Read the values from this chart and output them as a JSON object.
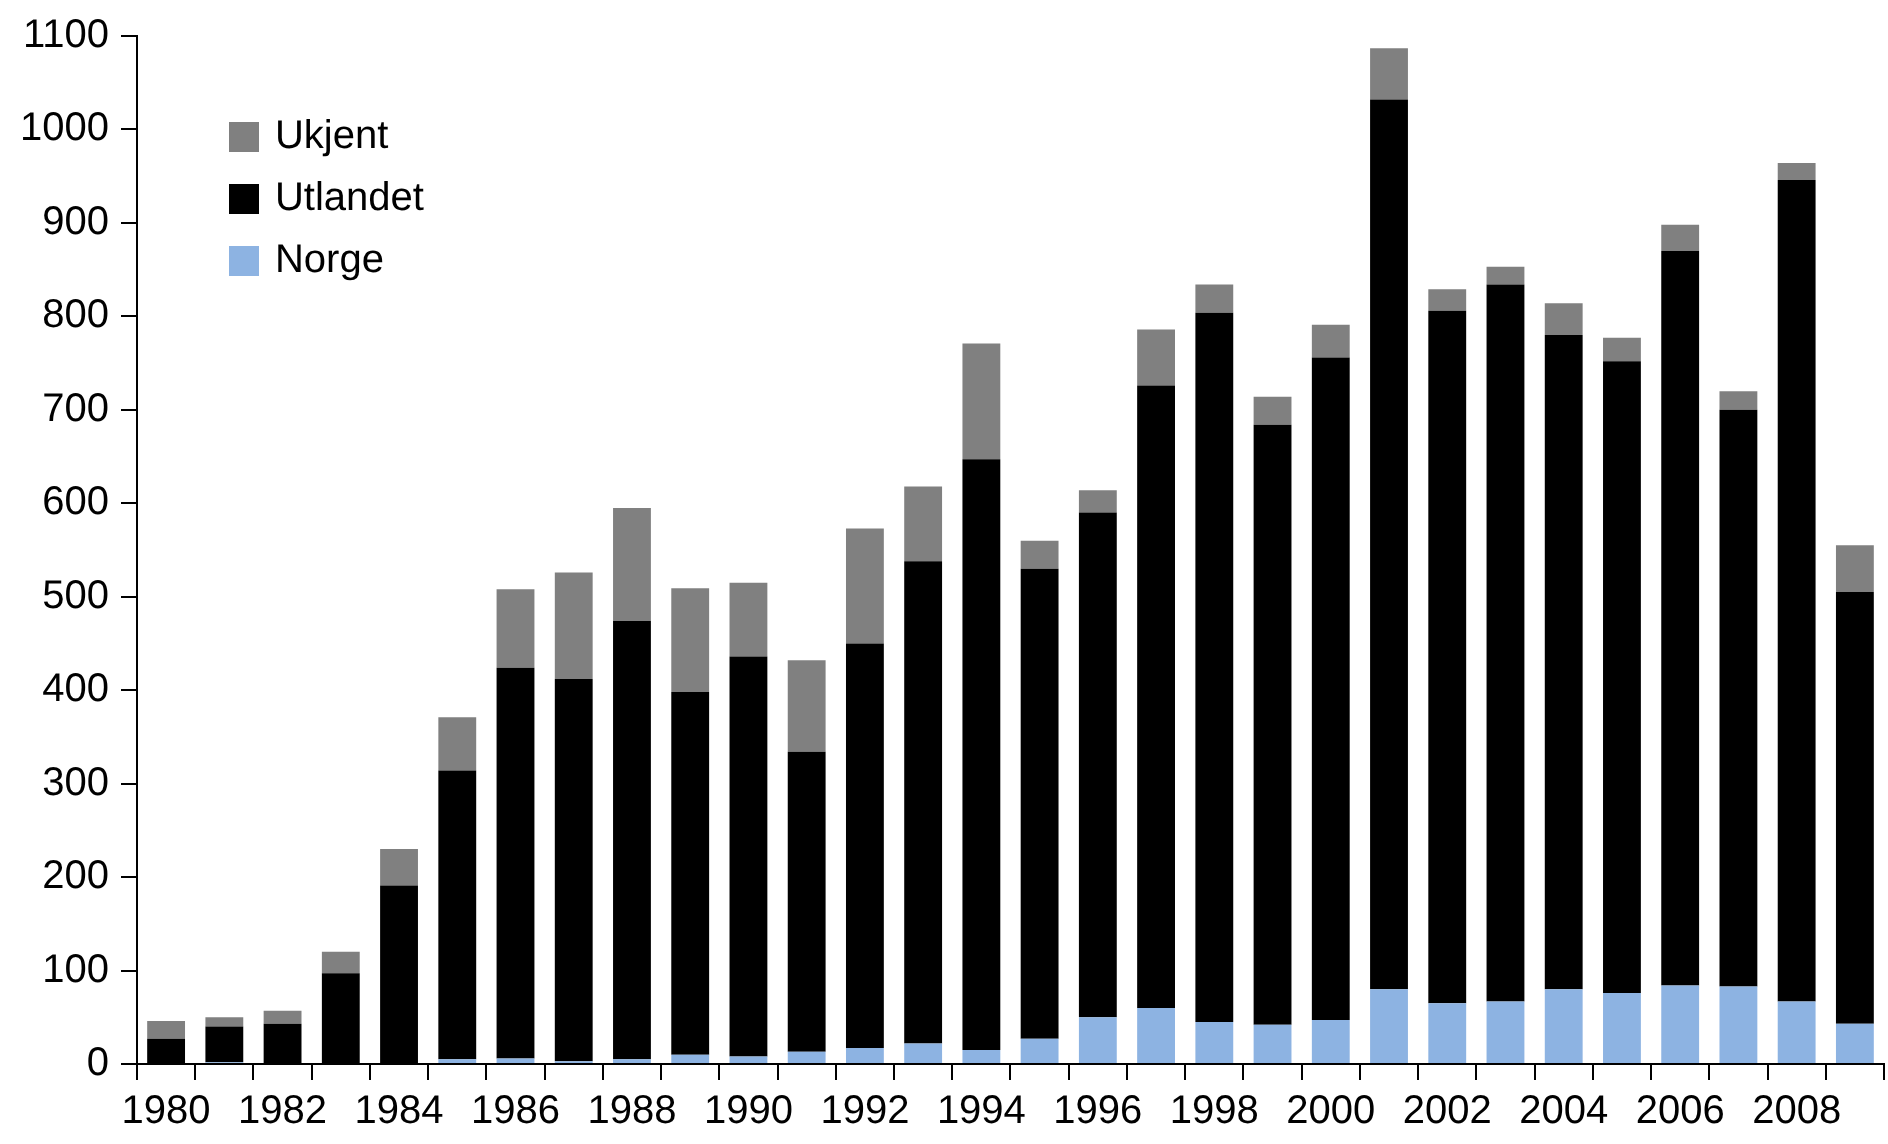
{
  "chart_data": {
    "type": "bar",
    "stacked": true,
    "categories": [
      "1980",
      null,
      "1982",
      null,
      "1984",
      null,
      "1986",
      null,
      "1988",
      null,
      "1990",
      null,
      "1992",
      null,
      "1994",
      null,
      "1996",
      null,
      "1998",
      null,
      "2000",
      null,
      "2002",
      null,
      "2004",
      null,
      "2006",
      null,
      "2008",
      null
    ],
    "series": [
      {
        "name": "Norge",
        "color": "#8db3e2",
        "values": [
          0,
          2,
          0,
          0,
          0,
          5,
          6,
          3,
          5,
          10,
          8,
          13,
          17,
          22,
          15,
          27,
          50,
          60,
          45,
          42,
          47,
          80,
          65,
          67,
          80,
          76,
          84,
          83,
          67,
          43
        ]
      },
      {
        "name": "Utlandet",
        "color": "#000000",
        "values": [
          27,
          38,
          43,
          97,
          191,
          309,
          418,
          409,
          469,
          388,
          428,
          321,
          433,
          516,
          632,
          503,
          540,
          666,
          759,
          642,
          709,
          952,
          741,
          767,
          700,
          676,
          786,
          617,
          879,
          462
        ]
      },
      {
        "name": "Ukjent",
        "color": "#808080",
        "values": [
          19,
          10,
          14,
          23,
          39,
          57,
          84,
          114,
          121,
          111,
          79,
          98,
          123,
          80,
          124,
          30,
          24,
          60,
          30,
          30,
          35,
          55,
          23,
          19,
          34,
          25,
          28,
          20,
          18,
          50
        ]
      }
    ],
    "ylim": [
      0,
      1100
    ],
    "yticks": [
      0,
      100,
      200,
      300,
      400,
      500,
      600,
      700,
      800,
      900,
      1000,
      1100
    ],
    "grid": false,
    "legend": "top left"
  }
}
